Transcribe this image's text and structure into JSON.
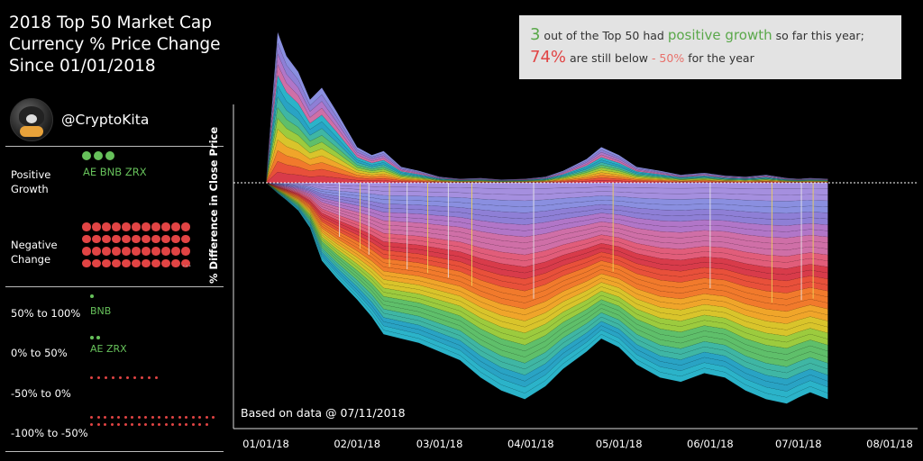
{
  "header": {
    "title_lines": [
      "2018 Top 50 Market Cap",
      "Currency % Price Change",
      "Since 01/01/2018"
    ],
    "handle": "@CryptoKita"
  },
  "sidebar": {
    "positive_label_1": "Positive",
    "positive_label_2": "Growth",
    "positive_coins": "AE BNB  ZRX",
    "negative_label_1": "Negative",
    "negative_label_2": "Change",
    "negative_more": "...",
    "buckets": [
      {
        "label": "50% to 100%",
        "coins": "BNB",
        "count": 1,
        "color": "#66c05a"
      },
      {
        "label": "0% to 50%",
        "coins": "AE  ZRX",
        "count": 2,
        "color": "#66c05a"
      },
      {
        "label": "-50% to 0%",
        "coins": "",
        "count": 10,
        "color": "#e14444"
      },
      {
        "label": "-100% to -50%",
        "coins": "",
        "count": 37,
        "color": "#e14444"
      }
    ],
    "positive_count": 3,
    "negative_count": 47
  },
  "annotation": {
    "line1_num": "3",
    "line1_a": " out of the Top 50 had ",
    "line1_b": "positive growth",
    "line1_c": " so far this year;",
    "line2_num": "74%",
    "line2_a": " are still below ",
    "line2_b": "- 50%",
    "line2_c": " for the year"
  },
  "axis": {
    "ylabel": "% Difference in Close Price",
    "note": "Based on data @ 07/11/2018"
  },
  "chart_data": {
    "type": "area",
    "title": "2018 Top 50 Market Cap Currency % Price Change Since 01/01/2018",
    "xlabel": "",
    "ylabel": "% Difference in Close Price",
    "x_ticks": [
      "01/01/18",
      "02/01/18",
      "03/01/18",
      "04/01/18",
      "05/01/18",
      "06/01/18",
      "07/01/18",
      "08/01/18"
    ],
    "x_range": [
      "2018-01-01",
      "2018-08-01"
    ],
    "data_end": "2018-07-11",
    "series_count": 50,
    "stacked": true,
    "baseline": 0,
    "envelope_dates": [
      "2018-01-01",
      "2018-01-05",
      "2018-01-08",
      "2018-01-12",
      "2018-01-16",
      "2018-01-20",
      "2018-01-25",
      "2018-02-01",
      "2018-02-06",
      "2018-02-10",
      "2018-02-16",
      "2018-02-22",
      "2018-03-01",
      "2018-03-08",
      "2018-03-15",
      "2018-03-22",
      "2018-03-30",
      "2018-04-06",
      "2018-04-12",
      "2018-04-20",
      "2018-04-25",
      "2018-05-01",
      "2018-05-07",
      "2018-05-15",
      "2018-05-22",
      "2018-05-30",
      "2018-06-06",
      "2018-06-13",
      "2018-06-20",
      "2018-06-27",
      "2018-07-01",
      "2018-07-05",
      "2018-07-11"
    ],
    "positive_stack_total": [
      0,
      380,
      320,
      280,
      210,
      240,
      180,
      90,
      70,
      80,
      40,
      30,
      15,
      10,
      12,
      8,
      10,
      15,
      30,
      60,
      90,
      70,
      40,
      30,
      20,
      25,
      18,
      15,
      20,
      12,
      10,
      12,
      10
    ],
    "negative_stack_total": [
      0,
      -120,
      -200,
      -320,
      -520,
      -900,
      -1100,
      -1350,
      -1550,
      -1750,
      -1800,
      -1850,
      -1950,
      -2050,
      -2250,
      -2400,
      -2500,
      -2350,
      -2150,
      -1950,
      -1800,
      -1900,
      -2100,
      -2250,
      -2300,
      -2200,
      -2250,
      -2400,
      -2500,
      -2550,
      -2480,
      -2420,
      -2500
    ],
    "annotation_text": "3 out of the Top 50 had positive growth so far this year; 74% are still below - 50% for the year"
  },
  "colors": {
    "positive": "#66c05a",
    "negative": "#e14444",
    "annotation_bg": "#e3e3e3"
  }
}
